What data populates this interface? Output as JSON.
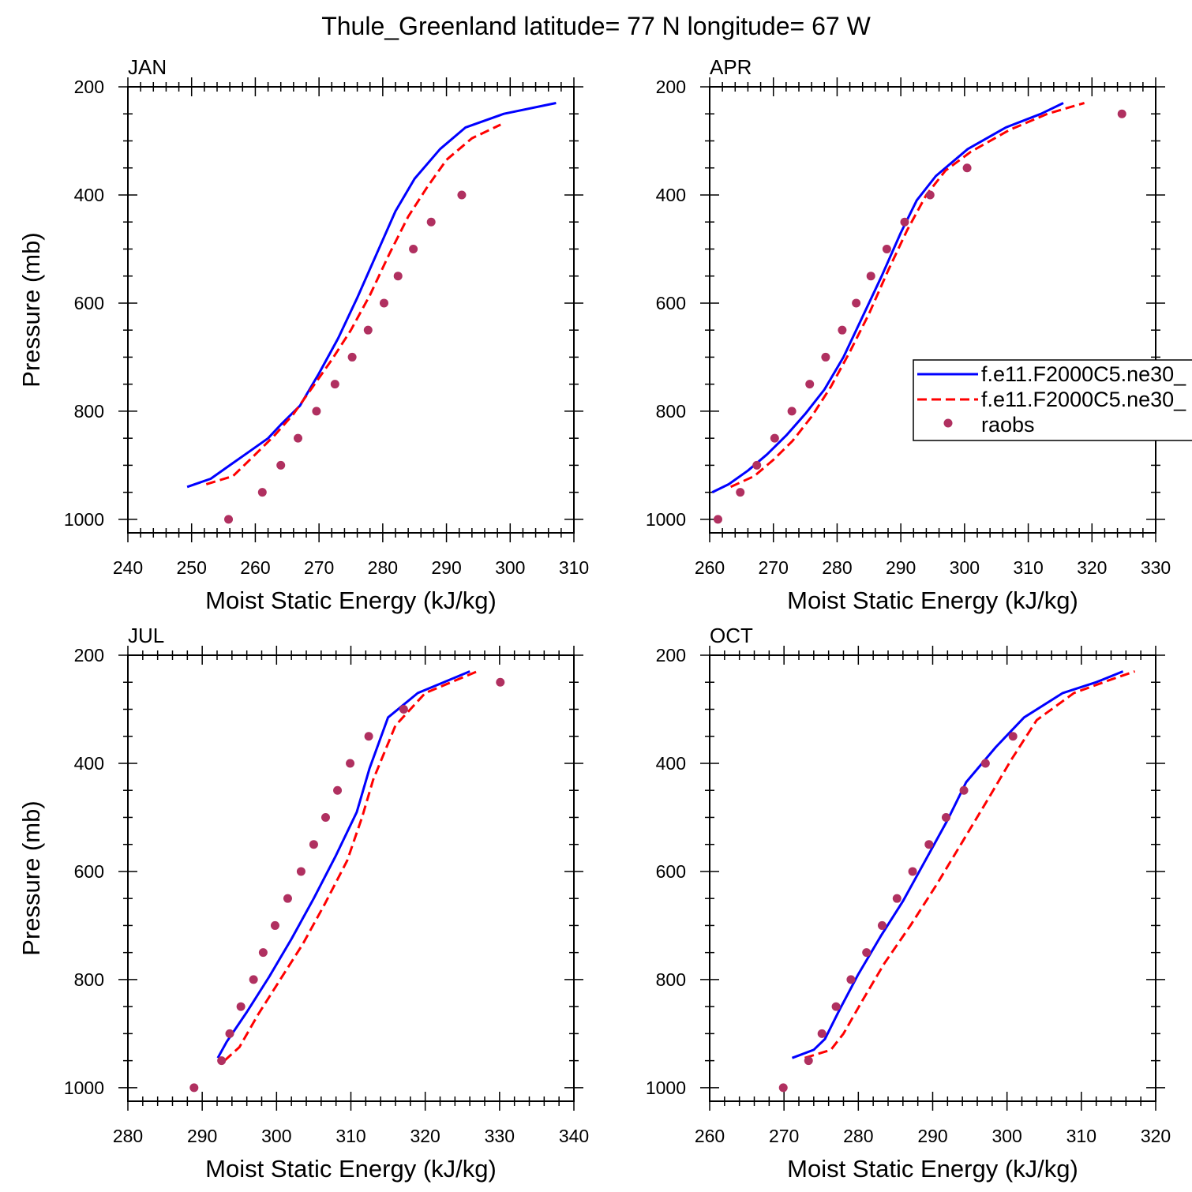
{
  "figure": {
    "title": "Thule_Greenland  latitude= 77 N longitude= 67 W"
  },
  "colors": {
    "model1": "#0000ff",
    "model2": "#ff0000",
    "raobs": "#b03060",
    "axis": "#000000"
  },
  "legend": {
    "placement": "right-middle of APR panel",
    "entries": [
      "f.e11.F2000C5.ne30_",
      "f.e11.F2000C5.ne30_",
      "raobs"
    ]
  },
  "chart_data": [
    {
      "type": "line",
      "panel_label": "JAN",
      "xlabel": "Moist Static Energy (kJ/kg)",
      "ylabel": "Pressure (mb)",
      "xlim": [
        240,
        310
      ],
      "ylim": [
        1025,
        200
      ],
      "xticks": [
        240,
        250,
        260,
        270,
        280,
        290,
        300,
        310
      ],
      "yticks": [
        200,
        400,
        600,
        800,
        1000
      ],
      "series": [
        {
          "name": "f.e11.F2000C5.ne30_",
          "style": "solid",
          "x": [
            249.3,
            253,
            256,
            259,
            262,
            264,
            267,
            270,
            273,
            276,
            279,
            282,
            285,
            289,
            293,
            299,
            307.2
          ],
          "y": [
            940,
            925,
            900,
            875,
            850,
            825,
            790,
            730,
            665,
            590,
            510,
            430,
            370,
            315,
            275,
            250,
            230
          ]
        },
        {
          "name": "f.e11.F2000C5.ne30_",
          "style": "dashed",
          "x": [
            252.3,
            256.5,
            260,
            263,
            266,
            269,
            272,
            275,
            278,
            281,
            284,
            287,
            290,
            294,
            298.5
          ],
          "y": [
            935,
            920,
            880,
            845,
            805,
            755,
            705,
            650,
            585,
            510,
            440,
            385,
            335,
            295,
            270
          ]
        },
        {
          "name": "raobs",
          "style": "markers",
          "x": [
            255.8,
            261.1,
            264,
            266.7,
            269.6,
            272.5,
            275.2,
            277.7,
            280.2,
            282.4,
            284.8,
            287.6,
            292.4
          ],
          "y": [
            1000,
            950,
            900,
            850,
            800,
            750,
            700,
            650,
            600,
            550,
            500,
            450,
            400
          ]
        }
      ]
    },
    {
      "type": "line",
      "panel_label": "APR",
      "xlabel": "Moist Static Energy (kJ/kg)",
      "ylabel": "",
      "xlim": [
        260,
        330
      ],
      "ylim": [
        1025,
        200
      ],
      "xticks": [
        260,
        270,
        280,
        290,
        300,
        310,
        320,
        330
      ],
      "yticks": [
        200,
        400,
        600,
        800,
        1000
      ],
      "series": [
        {
          "name": "f.e11.F2000C5.ne30_",
          "style": "solid",
          "x": [
            260.4,
            263,
            266,
            269,
            272,
            275,
            278,
            281,
            284,
            287,
            290,
            292.5,
            295.5,
            300.5,
            306.5,
            312,
            315.5
          ],
          "y": [
            950,
            935,
            910,
            880,
            845,
            805,
            760,
            700,
            625,
            550,
            470,
            410,
            365,
            315,
            275,
            250,
            230
          ]
        },
        {
          "name": "f.e11.F2000C5.ne30_",
          "style": "dashed",
          "x": [
            263.3,
            267,
            270,
            273,
            276,
            279,
            282,
            285,
            288,
            291,
            294,
            297,
            301,
            307,
            313,
            318.8
          ],
          "y": [
            940,
            920,
            890,
            855,
            810,
            755,
            690,
            620,
            540,
            465,
            400,
            355,
            320,
            280,
            250,
            230
          ]
        },
        {
          "name": "raobs",
          "style": "markers",
          "x": [
            261.3,
            264.8,
            267.4,
            270.2,
            272.9,
            275.7,
            278.2,
            280.8,
            283,
            285.3,
            287.8,
            290.6,
            294.6,
            300.4,
            324.7
          ],
          "y": [
            1000,
            950,
            900,
            850,
            800,
            750,
            700,
            650,
            600,
            550,
            500,
            450,
            400,
            350,
            250
          ]
        }
      ]
    },
    {
      "type": "line",
      "panel_label": "JUL",
      "xlabel": "Moist Static Energy (kJ/kg)",
      "ylabel": "Pressure (mb)",
      "xlim": [
        280,
        340
      ],
      "ylim": [
        1025,
        200
      ],
      "xticks": [
        280,
        290,
        300,
        310,
        320,
        330,
        340
      ],
      "yticks": [
        200,
        400,
        600,
        800,
        1000
      ],
      "series": [
        {
          "name": "f.e11.F2000C5.ne30_",
          "style": "solid",
          "x": [
            292.1,
            293.3,
            296,
            299,
            302,
            305,
            308,
            310.8,
            312.5,
            315,
            319,
            322.5,
            326
          ],
          "y": [
            945,
            915,
            860,
            795,
            725,
            650,
            570,
            490,
            410,
            315,
            270,
            250,
            230
          ]
        },
        {
          "name": "f.e11.F2000C5.ne30_",
          "style": "dashed",
          "x": [
            293,
            295,
            297.5,
            300.5,
            303.5,
            306.5,
            309.5,
            311.5,
            313,
            316,
            320,
            323.5,
            327
          ],
          "y": [
            950,
            925,
            865,
            800,
            735,
            660,
            580,
            500,
            430,
            330,
            270,
            250,
            230
          ]
        },
        {
          "name": "raobs",
          "style": "markers",
          "x": [
            288.9,
            292.6,
            293.7,
            295.2,
            296.9,
            298.2,
            299.8,
            301.5,
            303.3,
            305,
            306.6,
            308.2,
            309.9,
            312.4,
            317.1,
            330.1
          ],
          "y": [
            1000,
            950,
            900,
            850,
            800,
            750,
            700,
            650,
            600,
            550,
            500,
            450,
            400,
            350,
            300,
            250
          ]
        }
      ]
    },
    {
      "type": "line",
      "panel_label": "OCT",
      "xlabel": "Moist Static Energy (kJ/kg)",
      "ylabel": "",
      "xlim": [
        260,
        320
      ],
      "ylim": [
        1025,
        200
      ],
      "xticks": [
        260,
        270,
        280,
        290,
        300,
        310,
        320
      ],
      "yticks": [
        200,
        400,
        600,
        800,
        1000
      ],
      "series": [
        {
          "name": "f.e11.F2000C5.ne30_",
          "style": "solid",
          "x": [
            271.1,
            274,
            275.5,
            277.5,
            280,
            283,
            286,
            289,
            292,
            294.5,
            298.5,
            302.3,
            307.5,
            312,
            315.6
          ],
          "y": [
            945,
            930,
            910,
            855,
            790,
            720,
            655,
            580,
            505,
            435,
            370,
            315,
            270,
            250,
            230
          ]
        },
        {
          "name": "f.e11.F2000C5.ne30_",
          "style": "dashed",
          "x": [
            272.8,
            276.3,
            278,
            280.5,
            283.5,
            287,
            290.5,
            294,
            297.5,
            300.5,
            304,
            309,
            314,
            317.2
          ],
          "y": [
            945,
            930,
            900,
            840,
            770,
            700,
            625,
            545,
            465,
            395,
            320,
            270,
            245,
            230
          ]
        },
        {
          "name": "raobs",
          "style": "markers",
          "x": [
            269.9,
            273.3,
            275.1,
            277,
            279,
            281.1,
            283.2,
            285.2,
            287.3,
            289.5,
            291.8,
            294.2,
            297.1,
            300.8
          ],
          "y": [
            1000,
            950,
            900,
            850,
            800,
            750,
            700,
            650,
            600,
            550,
            500,
            450,
            400,
            350
          ]
        }
      ]
    }
  ]
}
